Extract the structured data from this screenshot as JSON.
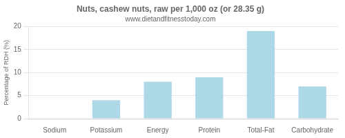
{
  "chart_data": {
    "type": "bar",
    "title": "Nuts, cashew nuts, raw per 1,000 oz (or 28.35 g)",
    "subtitle": "www.dietandfitnesstoday.com",
    "categories": [
      "Sodium",
      "Potassium",
      "Energy",
      "Protein",
      "Total-Fat",
      "Carbohydrate"
    ],
    "values": [
      0,
      4,
      8,
      9,
      19,
      7
    ],
    "color": "#add8e6",
    "ylabel": "Percentage of RDH (%)",
    "ylim": [
      0,
      20
    ],
    "yticks": [
      0,
      5,
      10,
      15,
      20
    ],
    "grid": true
  }
}
